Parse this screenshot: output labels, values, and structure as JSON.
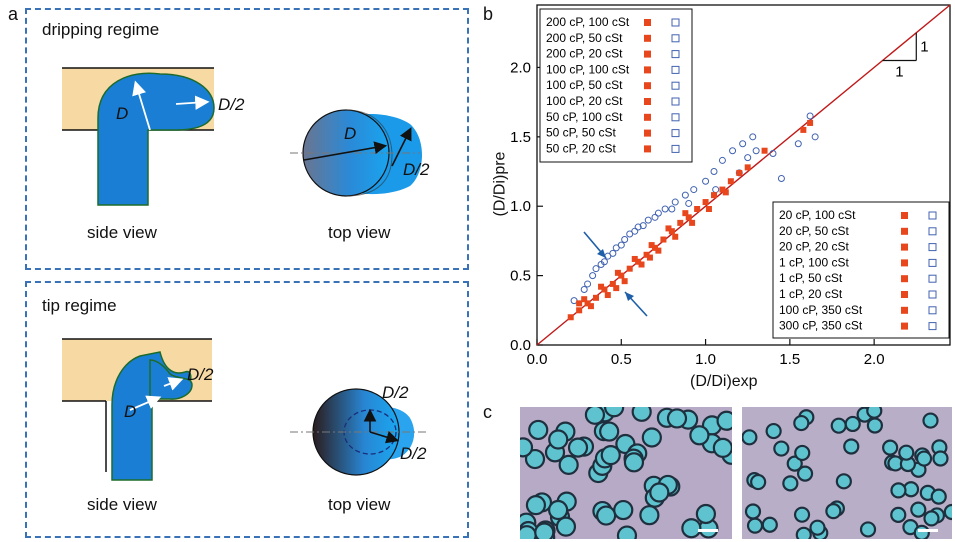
{
  "panels": {
    "a": {
      "letter": "a",
      "dripping": {
        "title": "dripping regime",
        "side_label": "side view",
        "top_label": "top view",
        "d_label": "D",
        "half_label": "D/2"
      },
      "tip": {
        "title": "tip regime",
        "side_label": "side view",
        "top_label": "top view",
        "d_label": "D",
        "half_label": "D/2"
      }
    },
    "b": {
      "letter": "b"
    },
    "c": {
      "letter": "c"
    }
  },
  "chart_data": {
    "type": "scatter",
    "xlabel": "(D/Di)exp",
    "ylabel": "(D/Di)pre",
    "xlim": [
      0,
      2.45
    ],
    "ylim": [
      0,
      2.45
    ],
    "xticks": [
      "0.0",
      "0.5",
      "1.0",
      "1.5",
      "2.0"
    ],
    "yticks": [
      "0.0",
      "0.5",
      "1.0",
      "1.5",
      "2.0"
    ],
    "slope_label": "1",
    "run_label": "1",
    "reference_line": "y = x",
    "legend_top": [
      "200 cP, 100 cSt",
      "200 cP, 50 cSt",
      "200 cP, 20 cSt",
      "100 cP, 100 cSt",
      "100 cP, 50 cSt",
      "100 cP, 20 cSt",
      "50 cP, 100 cSt",
      "50 cP, 50 cSt",
      "50 cP, 20 cSt"
    ],
    "legend_bottom": [
      "20 cP, 100 cSt",
      "20 cP, 50 cSt",
      "20 cP, 20 cSt",
      "1 cP, 100 cSt",
      "1 cP, 50 cSt",
      "1 cP, 20 cSt",
      "100 cP, 350 cSt",
      "300 cP, 350 cSt"
    ],
    "series": [
      {
        "name": "dripping regime (open blue)",
        "points": [
          [
            0.22,
            0.32
          ],
          [
            0.28,
            0.4
          ],
          [
            0.33,
            0.5
          ],
          [
            0.38,
            0.58
          ],
          [
            0.42,
            0.64
          ],
          [
            0.47,
            0.7
          ],
          [
            0.52,
            0.76
          ],
          [
            0.58,
            0.82
          ],
          [
            0.63,
            0.86
          ],
          [
            0.7,
            0.92
          ],
          [
            0.76,
            0.98
          ],
          [
            0.82,
            1.03
          ],
          [
            0.88,
            1.08
          ],
          [
            0.93,
            1.12
          ],
          [
            1.0,
            1.18
          ],
          [
            1.05,
            1.25
          ],
          [
            1.1,
            1.33
          ],
          [
            1.16,
            1.4
          ],
          [
            1.22,
            1.45
          ],
          [
            1.28,
            1.5
          ],
          [
            1.45,
            1.2
          ],
          [
            1.55,
            1.45
          ],
          [
            1.62,
            1.65
          ],
          [
            1.65,
            1.5
          ],
          [
            0.3,
            0.44
          ],
          [
            0.4,
            0.6
          ],
          [
            0.55,
            0.8
          ],
          [
            0.66,
            0.9
          ],
          [
            0.9,
            1.02
          ],
          [
            1.2,
            1.24
          ],
          [
            1.3,
            1.4
          ],
          [
            0.45,
            0.66
          ],
          [
            0.6,
            0.85
          ],
          [
            0.8,
            0.98
          ],
          [
            1.06,
            1.12
          ],
          [
            1.4,
            1.38
          ],
          [
            1.25,
            1.35
          ],
          [
            0.35,
            0.55
          ],
          [
            0.5,
            0.72
          ],
          [
            0.72,
            0.95
          ]
        ]
      },
      {
        "name": "tip regime (filled red)",
        "points": [
          [
            0.2,
            0.2
          ],
          [
            0.25,
            0.25
          ],
          [
            0.3,
            0.3
          ],
          [
            0.35,
            0.34
          ],
          [
            0.4,
            0.4
          ],
          [
            0.45,
            0.44
          ],
          [
            0.5,
            0.5
          ],
          [
            0.55,
            0.55
          ],
          [
            0.6,
            0.6
          ],
          [
            0.65,
            0.65
          ],
          [
            0.7,
            0.7
          ],
          [
            0.75,
            0.76
          ],
          [
            0.8,
            0.82
          ],
          [
            0.85,
            0.88
          ],
          [
            0.9,
            0.92
          ],
          [
            0.95,
            0.98
          ],
          [
            1.0,
            1.03
          ],
          [
            1.05,
            1.08
          ],
          [
            1.1,
            1.12
          ],
          [
            1.15,
            1.18
          ],
          [
            1.2,
            1.24
          ],
          [
            1.25,
            1.28
          ],
          [
            0.32,
            0.28
          ],
          [
            0.42,
            0.36
          ],
          [
            0.52,
            0.46
          ],
          [
            0.62,
            0.58
          ],
          [
            0.72,
            0.68
          ],
          [
            0.82,
            0.78
          ],
          [
            0.92,
            0.88
          ],
          [
            1.02,
            0.98
          ],
          [
            1.12,
            1.1
          ],
          [
            0.28,
            0.33
          ],
          [
            0.38,
            0.42
          ],
          [
            0.48,
            0.52
          ],
          [
            0.58,
            0.62
          ],
          [
            0.68,
            0.72
          ],
          [
            0.78,
            0.84
          ],
          [
            0.88,
            0.95
          ],
          [
            1.58,
            1.55
          ],
          [
            1.62,
            1.6
          ],
          [
            1.35,
            1.4
          ],
          [
            0.25,
            0.3
          ],
          [
            0.47,
            0.41
          ],
          [
            0.67,
            0.63
          ]
        ]
      }
    ]
  }
}
